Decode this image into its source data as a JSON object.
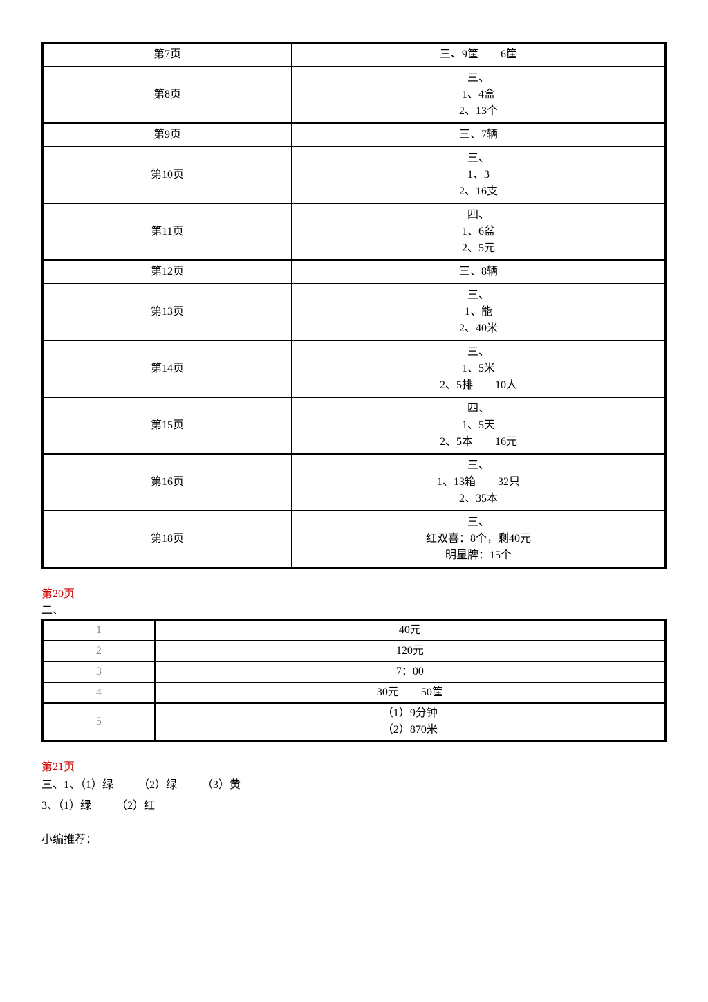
{
  "table1": {
    "rows": [
      {
        "page": "第7页",
        "answer": [
          "三、9筐　　6筐"
        ]
      },
      {
        "page": "第8页",
        "answer": [
          "三、",
          "1、4盒",
          "2、13个"
        ]
      },
      {
        "page": "第9页",
        "answer": [
          "三、7辆"
        ]
      },
      {
        "page": "第10页",
        "answer": [
          "三、",
          "1、3",
          "2、16支"
        ]
      },
      {
        "page": "第11页",
        "answer": [
          "四、",
          "1、6盆",
          "2、5元"
        ]
      },
      {
        "page": "第12页",
        "answer": [
          "三、8辆"
        ]
      },
      {
        "page": "第13页",
        "answer": [
          "三、",
          "1、能",
          "2、40米"
        ]
      },
      {
        "page": "第14页",
        "answer": [
          "三、",
          "1、5米",
          "2、5排　　10人"
        ]
      },
      {
        "page": "第15页",
        "answer": [
          "四、",
          "1、5天",
          "2、5本　　16元"
        ]
      },
      {
        "page": "第16页",
        "answer": [
          "三、",
          "1、13箱　　32只",
          "2、35本"
        ]
      },
      {
        "page": "第18页",
        "answer": [
          "三、",
          "红双喜：8个，剩40元",
          "明星牌：15个"
        ]
      }
    ]
  },
  "section20": {
    "header": "第20页",
    "subhead": "二、",
    "rows": [
      {
        "n": "1",
        "ans": [
          "40元"
        ]
      },
      {
        "n": "2",
        "ans": [
          "120元"
        ]
      },
      {
        "n": "3",
        "ans": [
          "7：00"
        ]
      },
      {
        "n": "4",
        "ans": [
          "30元　　50筐"
        ]
      },
      {
        "n": "5",
        "ans": [
          "（1）9分钟",
          "（2）870米"
        ]
      }
    ]
  },
  "section21": {
    "header": "第21页",
    "line1_parts": [
      "三、1、（1）绿",
      "（2）绿",
      "（3）黄"
    ],
    "line2_parts": [
      "3、（1）绿",
      "（2）红"
    ]
  },
  "recommend": "小编推荐："
}
